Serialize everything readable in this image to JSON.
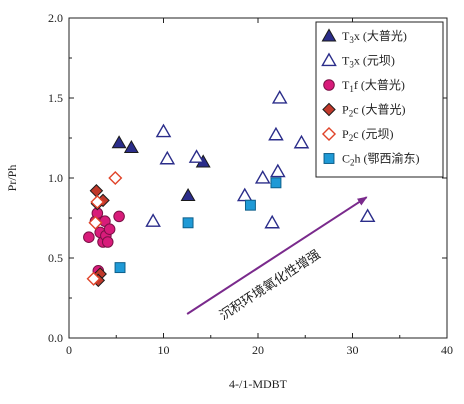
{
  "chart_data": {
    "type": "scatter",
    "title": "",
    "xlabel": "4-/1-MDBT",
    "ylabel": "Pr/Ph",
    "xlim": [
      0,
      40
    ],
    "ylim": [
      0,
      2.0
    ],
    "xticks": [
      "0",
      "10",
      "20",
      "30",
      "40"
    ],
    "yticks": [
      "0.0",
      "0.5",
      "1.0",
      "1.5",
      "2.0"
    ],
    "grid": false,
    "legend_position": "top-right",
    "annotation": {
      "text": "沉积环境氧化性增强",
      "arrow_from": [
        12.5,
        0.15
      ],
      "arrow_to": [
        31.5,
        0.88
      ],
      "color": "#7a2a8c"
    },
    "series": [
      {
        "name": "T3x (大普光)",
        "label_main": "T",
        "label_sub": "3",
        "label_rest": "x (大普光)",
        "marker": "triangle",
        "filled": true,
        "color": "#2b2d8a",
        "points": [
          [
            5.3,
            1.22
          ],
          [
            6.6,
            1.19
          ],
          [
            12.6,
            0.89
          ],
          [
            14.2,
            1.1
          ]
        ]
      },
      {
        "name": "T3x (元坝)",
        "label_main": "T",
        "label_sub": "3",
        "label_rest": "x (元坝)",
        "marker": "triangle",
        "filled": false,
        "color": "#2b2d8a",
        "points": [
          [
            8.9,
            0.73
          ],
          [
            10.0,
            1.29
          ],
          [
            10.4,
            1.12
          ],
          [
            13.5,
            1.13
          ],
          [
            18.6,
            0.89
          ],
          [
            20.5,
            1.0
          ],
          [
            21.5,
            0.72
          ],
          [
            21.9,
            1.27
          ],
          [
            22.1,
            1.04
          ],
          [
            22.3,
            1.5
          ],
          [
            24.6,
            1.22
          ],
          [
            31.6,
            0.76
          ],
          [
            38.3,
            1.04
          ]
        ]
      },
      {
        "name": "T1f (大普光)",
        "label_main": "T",
        "label_sub": "1",
        "label_rest": "f (大普光)",
        "marker": "circle",
        "filled": true,
        "color": "#d81b7a",
        "points": [
          [
            2.1,
            0.63
          ],
          [
            2.8,
            0.73
          ],
          [
            3.0,
            0.78
          ],
          [
            3.1,
            0.42
          ],
          [
            3.3,
            0.66
          ],
          [
            3.6,
            0.6
          ],
          [
            3.8,
            0.73
          ],
          [
            3.9,
            0.64
          ],
          [
            4.1,
            0.6
          ],
          [
            4.3,
            0.68
          ],
          [
            5.3,
            0.76
          ]
        ]
      },
      {
        "name": "P2c (大普光)",
        "label_main": "P",
        "label_sub": "2",
        "label_rest": "c (大普光)",
        "marker": "diamond",
        "filled": true,
        "color": "#c0392b",
        "points": [
          [
            2.9,
            0.92
          ],
          [
            3.0,
            0.84
          ],
          [
            3.3,
            0.4
          ],
          [
            3.6,
            0.86
          ],
          [
            3.1,
            0.36
          ]
        ]
      },
      {
        "name": "P2c (元坝)",
        "label_main": "P",
        "label_sub": "2",
        "label_rest": "c (元坝)",
        "marker": "diamond",
        "filled": false,
        "color": "#e0442a",
        "points": [
          [
            2.6,
            0.37
          ],
          [
            2.8,
            0.72
          ],
          [
            3.0,
            0.85
          ],
          [
            4.9,
            1.0
          ]
        ]
      },
      {
        "name": "C2h (鄂西渝东)",
        "label_main": "C",
        "label_sub": "2",
        "label_rest": "h (鄂西渝东)",
        "marker": "square",
        "filled": true,
        "color": "#1f9ad6",
        "points": [
          [
            5.4,
            0.44
          ],
          [
            12.6,
            0.72
          ],
          [
            19.2,
            0.83
          ],
          [
            21.9,
            0.97
          ]
        ]
      }
    ]
  }
}
